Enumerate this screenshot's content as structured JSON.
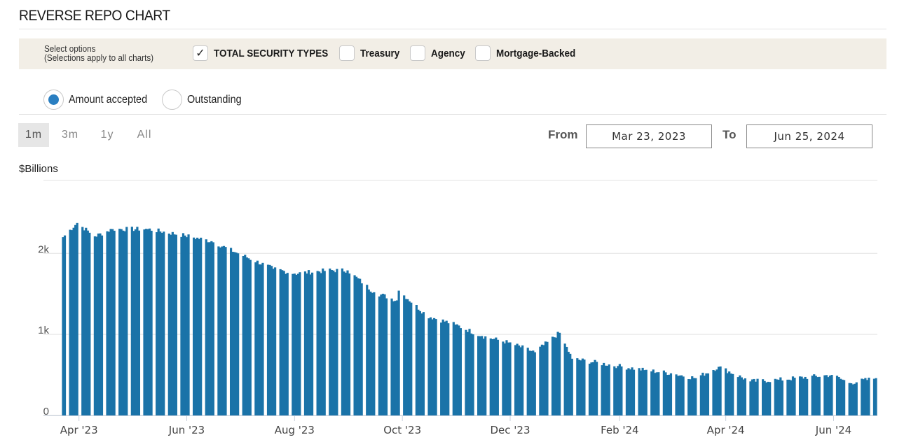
{
  "page": {
    "title": "REVERSE REPO CHART"
  },
  "options": {
    "label_line1": "Select options",
    "label_line2": "(Selections apply to all charts)",
    "checkboxes": [
      {
        "label": "TOTAL SECURITY TYPES",
        "checked": true
      },
      {
        "label": "Treasury",
        "checked": false
      },
      {
        "label": "Agency",
        "checked": false
      },
      {
        "label": "Mortgage-Backed",
        "checked": false
      }
    ],
    "check_glyph": "✓"
  },
  "measure": {
    "options": [
      {
        "label": "Amount accepted",
        "selected": true
      },
      {
        "label": "Outstanding",
        "selected": false
      }
    ]
  },
  "range": {
    "buttons": [
      "1m",
      "3m",
      "1y",
      "All"
    ],
    "active": "1m",
    "from_label": "From",
    "from_value": "Mar 23, 2023",
    "to_label": "To",
    "to_value": "Jun 25, 2024"
  },
  "colors": {
    "bar": "#1a73a8",
    "grid": "#e3e3e3",
    "axis": "#c8d0dc"
  },
  "chart_data": {
    "type": "bar",
    "ylabel": "$Billions",
    "ylim": [
      0,
      2900
    ],
    "yticks": [
      0,
      1000,
      2000
    ],
    "ytick_labels": [
      "0",
      "1k",
      "2k"
    ],
    "grid": true,
    "x_start": "2023-03-23",
    "x_end": "2024-06-25",
    "xticks": [
      {
        "date": "2023-04-01",
        "label": "Apr '23"
      },
      {
        "date": "2023-06-01",
        "label": "Jun '23"
      },
      {
        "date": "2023-08-01",
        "label": "Aug '23"
      },
      {
        "date": "2023-10-01",
        "label": "Oct '23"
      },
      {
        "date": "2023-12-01",
        "label": "Dec '23"
      },
      {
        "date": "2024-02-01",
        "label": "Feb '24"
      },
      {
        "date": "2024-04-01",
        "label": "Apr '24"
      },
      {
        "date": "2024-06-01",
        "label": "Jun '24"
      }
    ],
    "keyframes": [
      {
        "date": "2023-03-23",
        "value": 2200
      },
      {
        "date": "2023-03-31",
        "value": 2375
      },
      {
        "date": "2023-04-10",
        "value": 2210
      },
      {
        "date": "2023-04-20",
        "value": 2300
      },
      {
        "date": "2023-05-10",
        "value": 2300
      },
      {
        "date": "2023-05-31",
        "value": 2220
      },
      {
        "date": "2023-06-15",
        "value": 2150
      },
      {
        "date": "2023-06-30",
        "value": 2000
      },
      {
        "date": "2023-07-20",
        "value": 1810
      },
      {
        "date": "2023-08-01",
        "value": 1750
      },
      {
        "date": "2023-08-20",
        "value": 1790
      },
      {
        "date": "2023-08-31",
        "value": 1790
      },
      {
        "date": "2023-09-15",
        "value": 1520
      },
      {
        "date": "2023-09-28",
        "value": 1420
      },
      {
        "date": "2023-09-29",
        "value": 1540
      },
      {
        "date": "2023-10-15",
        "value": 1230
      },
      {
        "date": "2023-10-31",
        "value": 1120
      },
      {
        "date": "2023-11-15",
        "value": 980
      },
      {
        "date": "2023-11-30",
        "value": 900
      },
      {
        "date": "2023-12-15",
        "value": 780
      },
      {
        "date": "2023-12-29",
        "value": 1020
      },
      {
        "date": "2024-01-05",
        "value": 700
      },
      {
        "date": "2024-01-31",
        "value": 610
      },
      {
        "date": "2024-02-15",
        "value": 560
      },
      {
        "date": "2024-03-01",
        "value": 520
      },
      {
        "date": "2024-03-15",
        "value": 460
      },
      {
        "date": "2024-03-28",
        "value": 600
      },
      {
        "date": "2024-04-15",
        "value": 420
      },
      {
        "date": "2024-05-01",
        "value": 440
      },
      {
        "date": "2024-05-31",
        "value": 500
      },
      {
        "date": "2024-06-10",
        "value": 400
      },
      {
        "date": "2024-06-25",
        "value": 460
      }
    ],
    "noise": 30
  }
}
